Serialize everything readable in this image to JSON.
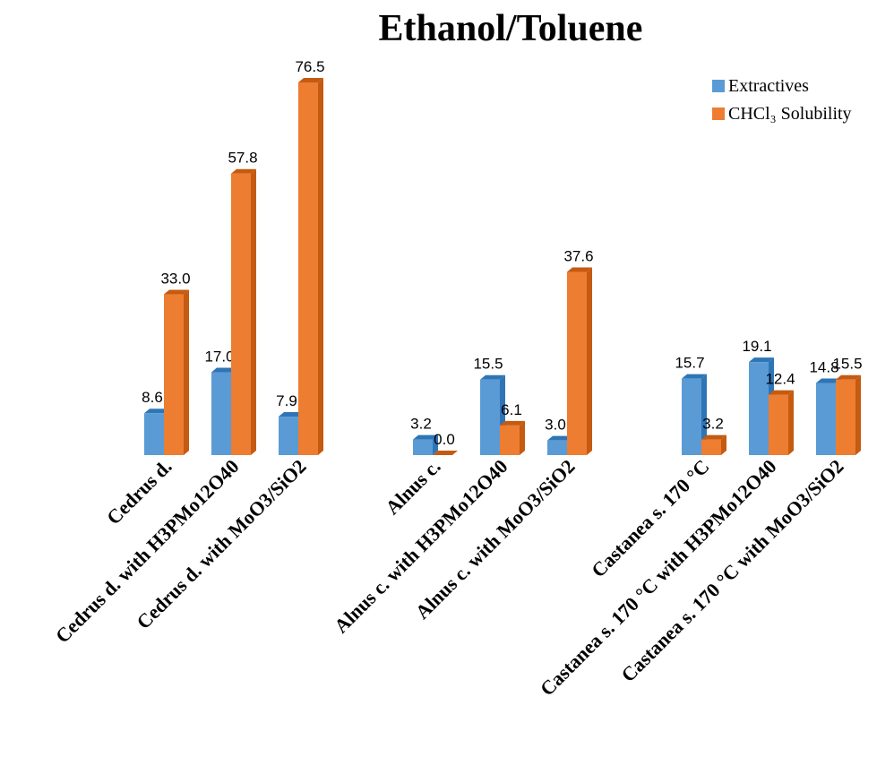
{
  "chart_data": {
    "type": "bar3d",
    "title": "Ethanol/Toluene",
    "categories": [
      "Cedrus d.",
      "Cedrus d. with H3PMo12O40",
      "Cedrus d. with MoO3/SiO2",
      null,
      "Alnus c.",
      "Alnus c. with H3PMo12O40",
      "Alnus c. with MoO3/SiO2",
      null,
      "Castanea s. 170 °C",
      "Castanea s. 170 °C with H3PMo12O40",
      "Castanea s. 170 °C with MoO3/SiO2"
    ],
    "series": [
      {
        "name": "Extractives",
        "color": "#5b9bd5",
        "side": "#2e75b6",
        "values": [
          8.6,
          17.0,
          7.9,
          null,
          3.2,
          15.5,
          3.0,
          null,
          15.7,
          19.1,
          14.8
        ],
        "value_labels": [
          "8.6",
          "17.0",
          "7.9",
          null,
          "3.2",
          "15.5",
          "3.0",
          null,
          "15.7",
          "19.1",
          "14.8"
        ]
      },
      {
        "name": "CHCl₃ Solubility",
        "color": "#ed7d31",
        "side": "#c55a11",
        "values": [
          33.0,
          57.8,
          76.5,
          null,
          0.0,
          6.1,
          37.6,
          null,
          3.2,
          12.4,
          15.5
        ],
        "value_labels": [
          "33.0",
          "57.8",
          "76.5",
          null,
          "0.0",
          "6.1",
          "37.6",
          null,
          "3.2",
          "12.4",
          "15.5"
        ]
      }
    ],
    "legend": "top-right"
  }
}
